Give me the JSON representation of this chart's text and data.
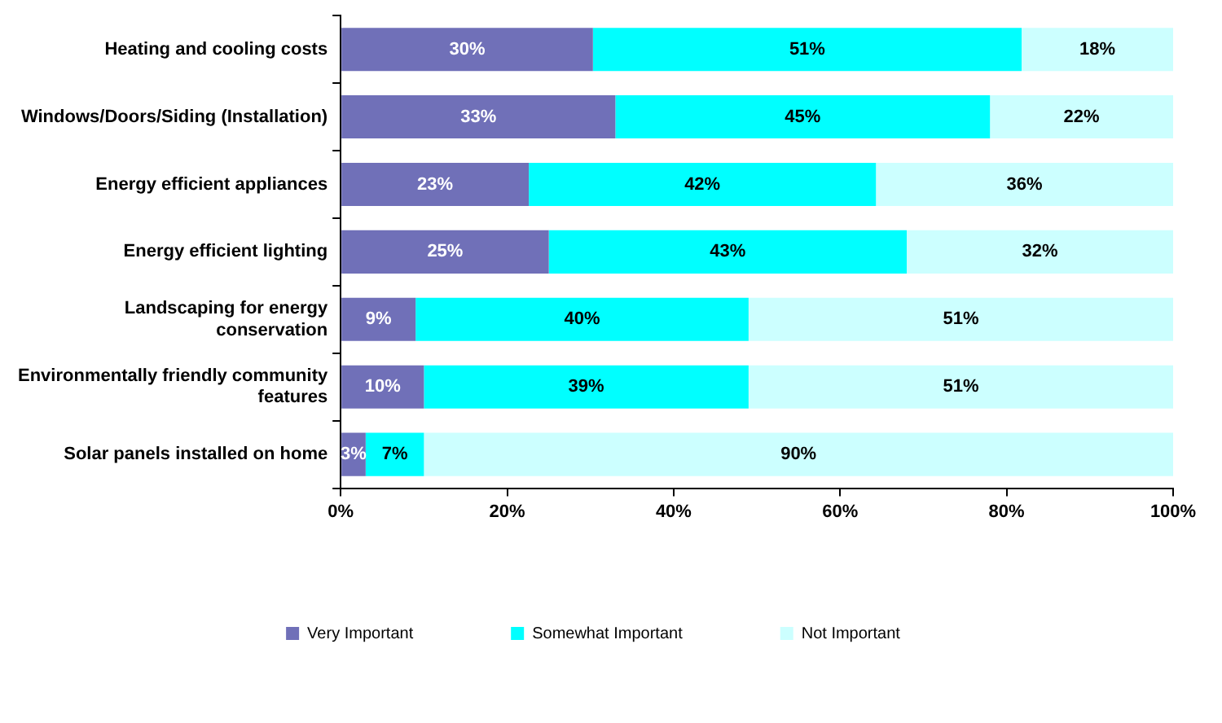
{
  "chart_data": {
    "type": "bar",
    "orientation": "horizontal",
    "stacked": true,
    "categories": [
      "Heating and cooling costs",
      "Windows/Doors/Siding (Installation)",
      "Energy efficient appliances",
      "Energy efficient lighting",
      "Landscaping for energy conservation",
      "Environmentally friendly community features",
      "Solar panels installed on home"
    ],
    "series": [
      {
        "name": "Very Important",
        "color": "#7070b8",
        "values": [
          30.3,
          33,
          22.6,
          25,
          9,
          10,
          3
        ],
        "value_labels": [
          "30%",
          "33%",
          "23%",
          "25%",
          "9%",
          "10%",
          "3%"
        ]
      },
      {
        "name": "Somewhat Important",
        "color": "#00ffff",
        "values": [
          51.5,
          45,
          41.7,
          43,
          40,
          39,
          7
        ],
        "value_labels": [
          "51%",
          "45%",
          "42%",
          "43%",
          "40%",
          "39%",
          "7%"
        ]
      },
      {
        "name": "Not Important",
        "color": "#ccffff",
        "values": [
          18.2,
          22,
          35.7,
          32,
          51,
          51,
          90
        ],
        "value_labels": [
          "18%",
          "22%",
          "36%",
          "32%",
          "51%",
          "51%",
          "90%"
        ]
      }
    ],
    "xlim": [
      0,
      100
    ],
    "xticks": [
      {
        "value": 0,
        "label": "0%"
      },
      {
        "value": 20,
        "label": "20%"
      },
      {
        "value": 40,
        "label": "40%"
      },
      {
        "value": 60,
        "label": "60%"
      },
      {
        "value": 80,
        "label": "80%"
      },
      {
        "value": 100,
        "label": "100%"
      }
    ],
    "legend": "bottom",
    "grid": false
  }
}
